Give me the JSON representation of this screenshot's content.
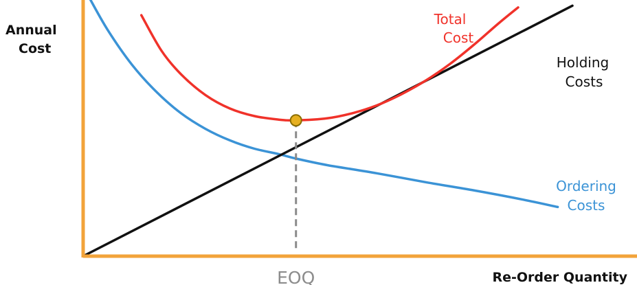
{
  "chart_data": {
    "type": "line",
    "ylabel": [
      "Annual",
      "Cost"
    ],
    "xlabel": "Re-Order Quantity",
    "x_domain": [
      0,
      10
    ],
    "y_domain": [
      0,
      10
    ],
    "eoq": {
      "x": 4.35,
      "label": "EOQ"
    },
    "series": [
      {
        "key": "total",
        "name": [
          "Total",
          "Cost"
        ],
        "color": "#f0322a",
        "points": [
          [
            1.19,
            10.2
          ],
          [
            1.6,
            8.7
          ],
          [
            2.0,
            7.7
          ],
          [
            2.5,
            6.82
          ],
          [
            3.0,
            6.25
          ],
          [
            3.5,
            5.93
          ],
          [
            4.0,
            5.78
          ],
          [
            4.35,
            5.75
          ],
          [
            5.0,
            5.84
          ],
          [
            5.5,
            6.05
          ],
          [
            6.0,
            6.38
          ],
          [
            6.5,
            6.85
          ],
          [
            7.0,
            7.43
          ],
          [
            7.5,
            8.14
          ],
          [
            8.0,
            8.97
          ],
          [
            8.5,
            9.87
          ],
          [
            8.89,
            10.53
          ]
        ]
      },
      {
        "key": "holding",
        "name": [
          "Holding",
          "Costs"
        ],
        "color": "#111111",
        "points": [
          [
            0,
            0
          ],
          [
            10,
            10.6
          ]
        ]
      },
      {
        "key": "ordering",
        "name": [
          "Ordering",
          "Costs"
        ],
        "color": "#3b93d6",
        "points": [
          [
            0.11,
            11.0
          ],
          [
            0.5,
            9.58
          ],
          [
            1.0,
            8.1
          ],
          [
            1.5,
            6.95
          ],
          [
            2.0,
            6.05
          ],
          [
            2.5,
            5.39
          ],
          [
            3.0,
            4.9
          ],
          [
            3.5,
            4.55
          ],
          [
            4.0,
            4.32
          ],
          [
            4.35,
            4.13
          ],
          [
            5.0,
            3.85
          ],
          [
            6.0,
            3.51
          ],
          [
            7.0,
            3.13
          ],
          [
            8.0,
            2.78
          ],
          [
            9.0,
            2.39
          ],
          [
            9.7,
            2.08
          ]
        ]
      }
    ],
    "axis_color": "#f2a33a",
    "marker_color": "#e6b020",
    "dash_color": "#8a8a8a",
    "eoq_label_color": "#8c8c8c"
  }
}
